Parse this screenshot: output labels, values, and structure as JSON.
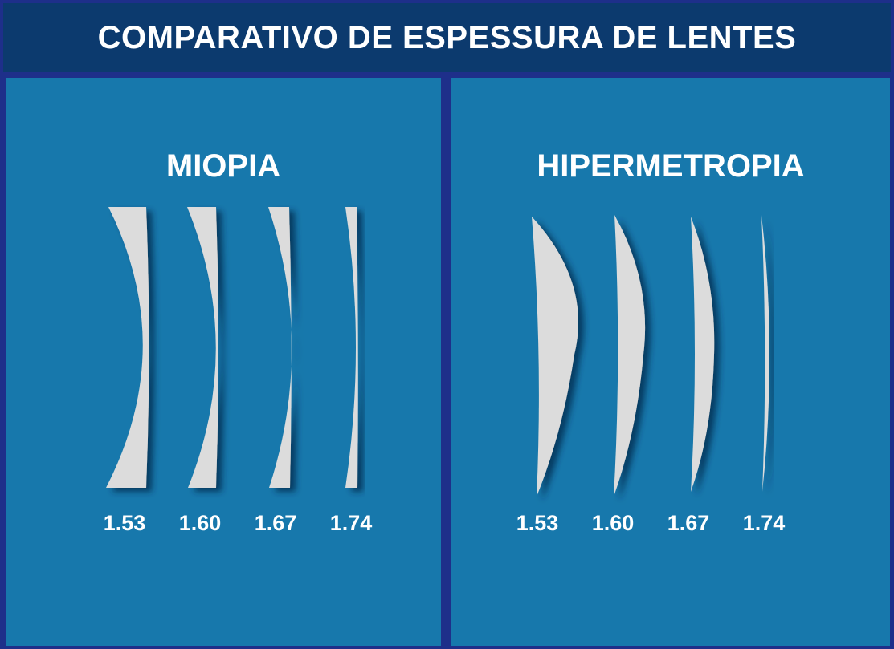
{
  "header": {
    "title": "COMPARATIVO DE ESPESSURA DE LENTES"
  },
  "colors": {
    "background": "#1e2f8a",
    "header": "#0c3a6e",
    "panel": "#1778ac",
    "lens": "#dcdcdc",
    "text": "#ffffff"
  },
  "panels": [
    {
      "title": "MIOPIA",
      "lens_type": "concave",
      "lenses": [
        {
          "index": "1.53"
        },
        {
          "index": "1.60"
        },
        {
          "index": "1.67"
        },
        {
          "index": "1.74"
        }
      ]
    },
    {
      "title": "HIPERMETROPIA",
      "lens_type": "convex",
      "lenses": [
        {
          "index": "1.53"
        },
        {
          "index": "1.60"
        },
        {
          "index": "1.67"
        },
        {
          "index": "1.74"
        }
      ]
    }
  ]
}
